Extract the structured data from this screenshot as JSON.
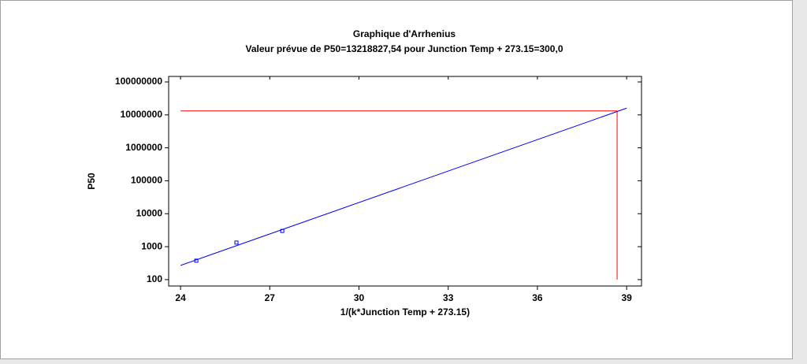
{
  "chart_data": {
    "type": "scatter",
    "title": "Graphique d'Arrhenius",
    "subtitle": "Valeur prévue de  P50=13218827,54 pour Junction Temp + 273.15=300,0",
    "x_label": "1/(k*Junction Temp + 273.15)",
    "y_label": "P50",
    "log_y": true,
    "xlim": [
      23.6,
      39.5
    ],
    "xticks": [
      24,
      27,
      30,
      33,
      36,
      39
    ],
    "ylim": [
      64,
      147000000
    ],
    "yticks": [
      100,
      1000,
      10000,
      100000,
      1000000,
      10000000,
      100000000
    ],
    "series": [
      {
        "mode": "markers",
        "color": "#0000ff",
        "x": [
          24.53,
          25.88,
          27.42
        ],
        "values": [
          375,
          1330,
          3000
        ]
      },
      {
        "mode": "line",
        "color": "#0000ff",
        "x": [
          24,
          39
        ],
        "values": [
          270,
          16000000
        ]
      }
    ],
    "reference": {
      "color": "#ff0000",
      "x": 38.68,
      "y": 13218827.54,
      "x0": 24,
      "y0": 100
    }
  }
}
